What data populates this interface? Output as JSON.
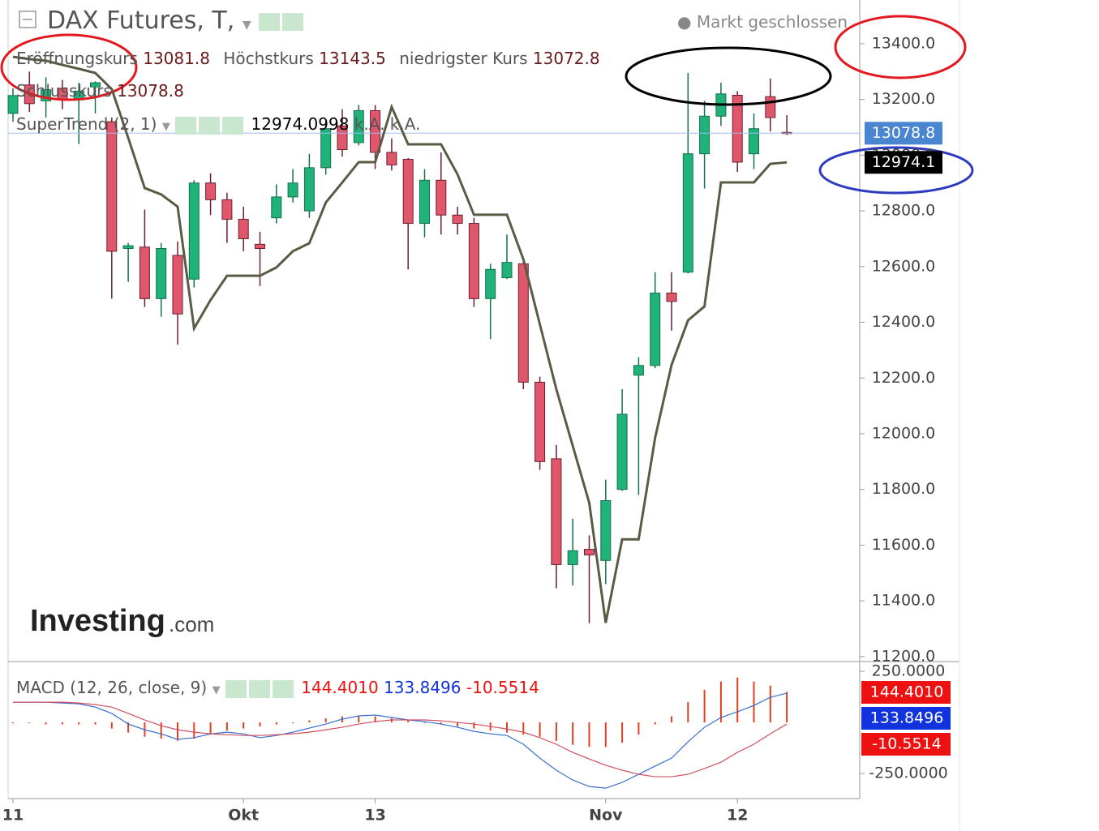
{
  "chart_data": {
    "type": "candlestick",
    "title": "DAX Futures, T,",
    "status": "Markt geschlossen",
    "ohlc_labels": [
      "Eröffnungskurs",
      "Höchstkurs",
      "niedrigster Kurs",
      "Schlusskurs"
    ],
    "ohlc_values": [
      13081.8,
      13143.5,
      13072.8,
      13078.8
    ],
    "categories": [
      "11",
      null,
      null,
      null,
      null,
      null,
      null,
      null,
      null,
      null,
      null,
      null,
      null,
      null,
      "Okt",
      null,
      null,
      null,
      null,
      null,
      null,
      null,
      "13",
      null,
      null,
      null,
      null,
      null,
      null,
      null,
      null,
      null,
      null,
      null,
      null,
      null,
      "Nov",
      null,
      null,
      null,
      null,
      null,
      null,
      null,
      "12",
      null,
      null,
      null
    ],
    "open": [
      13150,
      13252,
      13195,
      13240,
      13200,
      13245,
      13120,
      12665,
      12670,
      12485,
      12640,
      12555,
      12900,
      12840,
      12770,
      12680,
      12775,
      12850,
      12800,
      12955,
      13105,
      13045,
      13160,
      13010,
      12985,
      12755,
      12910,
      12785,
      12755,
      12485,
      12560,
      12610,
      12185,
      11910,
      11530,
      11585,
      11545,
      11800,
      12210,
      12245,
      12505,
      12580,
      13005,
      13140,
      13215,
      13005,
      13210,
      13081.8
    ],
    "high": [
      13240,
      13300,
      13280,
      13270,
      13260,
      13265,
      13135,
      12685,
      12805,
      12685,
      12690,
      12910,
      12935,
      12865,
      12815,
      12725,
      12895,
      12950,
      13005,
      13125,
      13165,
      13180,
      13180,
      13060,
      12990,
      12950,
      13010,
      12815,
      12775,
      12610,
      12715,
      12625,
      12205,
      11960,
      11695,
      11635,
      11835,
      12160,
      12275,
      12580,
      12580,
      13295,
      13195,
      13260,
      13230,
      13150,
      13275,
      13143.5
    ],
    "low": [
      13120,
      13155,
      13135,
      13165,
      13040,
      13150,
      12485,
      12545,
      12455,
      12420,
      12320,
      12525,
      12785,
      12685,
      12655,
      12530,
      12755,
      12830,
      12775,
      12930,
      12995,
      13035,
      12950,
      12945,
      12590,
      12705,
      12715,
      12715,
      12455,
      12340,
      12555,
      12160,
      11870,
      11445,
      11455,
      11320,
      11460,
      11795,
      11780,
      12235,
      12370,
      12575,
      12880,
      13105,
      12940,
      12950,
      13085,
      13072.8
    ],
    "close": [
      13214,
      13185,
      13235,
      13200,
      13230,
      13260,
      12655,
      12675,
      12485,
      12665,
      12430,
      12900,
      12840,
      12770,
      12700,
      12665,
      12850,
      12900,
      12955,
      13095,
      13020,
      13160,
      13010,
      12965,
      12755,
      12910,
      12785,
      12755,
      12485,
      12590,
      12615,
      12185,
      11900,
      11530,
      11580,
      11565,
      11760,
      12070,
      12245,
      12505,
      12475,
      13005,
      13140,
      13220,
      12975,
      13095,
      13135,
      13078.8
    ],
    "up_color": "#1fb37a",
    "down_color": "#e0566b",
    "ylim": [
      11185,
      13557
    ],
    "yticks": [
      {
        "value": 11200,
        "label": "11200.0"
      },
      {
        "value": 11400,
        "label": "11400.0"
      },
      {
        "value": 11600,
        "label": "11600.0"
      },
      {
        "value": 11800,
        "label": "11800.0"
      },
      {
        "value": 12000,
        "label": "12000.0"
      },
      {
        "value": 12200,
        "label": "12200.0"
      },
      {
        "value": 12400,
        "label": "12400.0"
      },
      {
        "value": 12600,
        "label": "12600.0"
      },
      {
        "value": 12800,
        "label": "12800.0"
      },
      {
        "value": 13000,
        "label": "13000.0"
      },
      {
        "value": 13200,
        "label": "13200.0"
      },
      {
        "value": 13400,
        "label": "13400.0"
      }
    ],
    "last_price": 13078.8,
    "supertrend": {
      "name": "SuperTrend (2, 1)",
      "value": 12974.0998,
      "extras": [
        "k.A.",
        "k.A."
      ],
      "last": 12974.1,
      "color": "#5b5b45",
      "values": [
        13353,
        13345,
        13339,
        13324,
        13310,
        13295,
        13237,
        13062,
        12882,
        12859,
        12815,
        12378,
        12480,
        12567,
        12567,
        12567,
        12597,
        12655,
        12684,
        12830,
        12902,
        12975,
        12975,
        13173,
        13039,
        13039,
        13039,
        12931,
        12786,
        12786,
        12786,
        12626,
        12393,
        12160,
        11956,
        11752,
        11321,
        11621,
        11621,
        11985,
        12247,
        12407,
        12457,
        12902,
        12902,
        12902,
        12969,
        12974
      ]
    },
    "macd": {
      "name": "MACD (12, 26, close, 9)",
      "values": [
        {
          "value": 144.401,
          "label": "144.4010"
        },
        {
          "value": 133.8496,
          "label": "133.8496"
        },
        {
          "value": -10.5514,
          "label": "-10.5514"
        }
      ],
      "colors": [
        "#ee1111",
        "#1133dd",
        "#ee1111"
      ],
      "ylim": [
        -373,
        294
      ],
      "yticks": [
        {
          "value": 250,
          "label": "250.0000"
        },
        {
          "value": -250,
          "label": "-250.0000"
        }
      ],
      "macd_line": [
        99,
        99,
        99,
        95,
        91,
        75,
        44,
        -8,
        -36,
        -56,
        -83,
        -75,
        -56,
        -48,
        -56,
        -75,
        -64,
        -48,
        -28,
        -8,
        16,
        32,
        36,
        24,
        12,
        4,
        -8,
        -24,
        -44,
        -56,
        -64,
        -107,
        -175,
        -234,
        -282,
        -314,
        -322,
        -294,
        -254,
        -214,
        -175,
        -95,
        -24,
        24,
        52,
        83,
        123,
        143
      ],
      "signal_line": [
        99,
        99,
        99,
        99,
        95,
        87,
        75,
        44,
        12,
        -16,
        -36,
        -48,
        -56,
        -60,
        -64,
        -64,
        -60,
        -56,
        -48,
        -36,
        -24,
        -8,
        4,
        12,
        12,
        12,
        8,
        0,
        -8,
        -20,
        -32,
        -48,
        -75,
        -107,
        -147,
        -179,
        -210,
        -234,
        -254,
        -266,
        -266,
        -254,
        -226,
        -195,
        -147,
        -107,
        -56,
        -8
      ],
      "histogram": [
        0,
        0,
        -10,
        -10,
        -10,
        -10,
        -30,
        -50,
        -70,
        -80,
        -90,
        -80,
        -60,
        -40,
        -30,
        -20,
        -10,
        0,
        10,
        20,
        30,
        30,
        30,
        20,
        10,
        0,
        -10,
        -20,
        -30,
        -40,
        -50,
        -60,
        -70,
        -90,
        -110,
        -120,
        -120,
        -100,
        -60,
        -10,
        30,
        100,
        160,
        200,
        220,
        200,
        180,
        150
      ],
      "line_colors": [
        "#3a6fd0",
        "#d05060"
      ],
      "hist_color": "#e04020"
    },
    "logo": [
      "Investing",
      ".com"
    ]
  }
}
